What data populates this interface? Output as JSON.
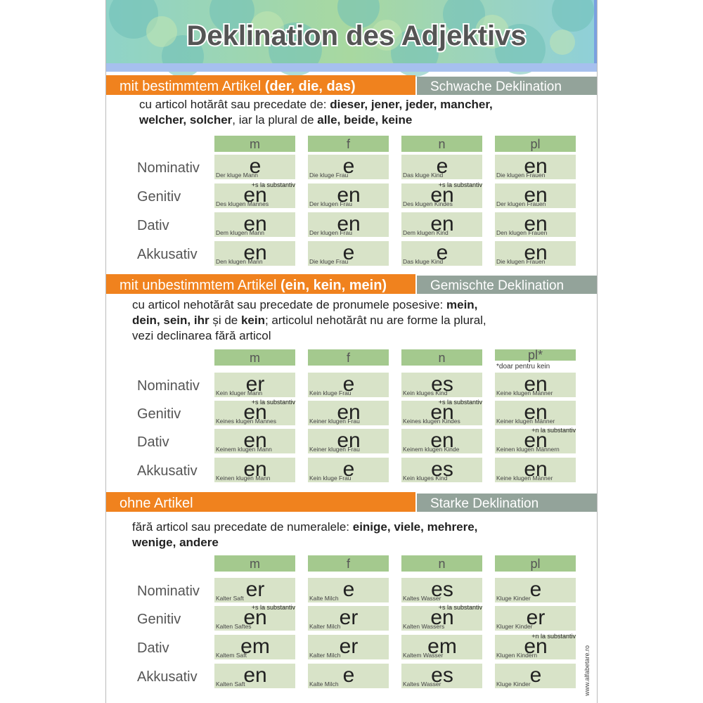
{
  "title": "Deklination des Adjektivs",
  "sections": [
    {
      "heading": [
        {
          "text": "mit bestimmtem Artikel ",
          "bold": false
        },
        {
          "text": "(der, die, das)",
          "bold": true
        }
      ],
      "type": "Schwache Deklination",
      "description": [
        [
          {
            "text": "cu articol hotărât sau precedate de: ",
            "bold": false
          },
          {
            "text": "dieser, jener, jeder, mancher,",
            "bold": true
          }
        ],
        [
          {
            "text": "welcher, solcher",
            "bold": true
          },
          {
            "text": ", iar la plural de ",
            "bold": false
          },
          {
            "text": "alle, beide, keine",
            "bold": true
          }
        ]
      ],
      "columns": [
        "m",
        "f",
        "n",
        "pl"
      ],
      "rows": [
        {
          "case": "Nominativ",
          "cells": [
            {
              "ending": "e",
              "example": "Der kluge Mann"
            },
            {
              "ending": "e",
              "example": "Die kluge Frau"
            },
            {
              "ending": "e",
              "example": "Das kluge Kind"
            },
            {
              "ending": "en",
              "example": "Die klugen Frauen"
            }
          ]
        },
        {
          "case": "Genitiv",
          "cells": [
            {
              "ending": "en",
              "example": "Des klugen Mannes",
              "note": "+s la substantiv"
            },
            {
              "ending": "en",
              "example": "Der klugen Frau"
            },
            {
              "ending": "en",
              "example": "Des klugen Kindes",
              "note": "+s la substantiv"
            },
            {
              "ending": "en",
              "example": "Der klugen Frauen"
            }
          ]
        },
        {
          "case": "Dativ",
          "cells": [
            {
              "ending": "en",
              "example": "Dem klugen Mann"
            },
            {
              "ending": "en",
              "example": "Der klugen Frau"
            },
            {
              "ending": "en",
              "example": "Dem klugen Kind"
            },
            {
              "ending": "en",
              "example": "Den klugen Frauen"
            }
          ]
        },
        {
          "case": "Akkusativ",
          "cells": [
            {
              "ending": "en",
              "example": "Den klugen Mann"
            },
            {
              "ending": "e",
              "example": "Die kluge Frau"
            },
            {
              "ending": "e",
              "example": "Das kluge Kind"
            },
            {
              "ending": "en",
              "example": "Die klugen Frauen"
            }
          ]
        }
      ]
    },
    {
      "heading": [
        {
          "text": "mit unbestimmtem Artikel ",
          "bold": false
        },
        {
          "text": "(ein, kein, mein)",
          "bold": true
        }
      ],
      "type": "Gemischte Deklination",
      "description": [
        [
          {
            "text": "cu articol nehotărât sau precedate de pronumele posesive: ",
            "bold": false
          },
          {
            "text": "mein,",
            "bold": true
          }
        ],
        [
          {
            "text": "dein, sein, ihr",
            "bold": true
          },
          {
            "text": " și de ",
            "bold": false
          },
          {
            "text": "kein",
            "bold": true
          },
          {
            "text": "; articolul nehotărât nu are forme la plural,",
            "bold": false
          }
        ],
        [
          {
            "text": "vezi declinarea fără articol",
            "bold": false
          }
        ]
      ],
      "columns": [
        "m",
        "f",
        "n",
        "pl*"
      ],
      "column_note": "*doar pentru kein",
      "rows": [
        {
          "case": "Nominativ",
          "cells": [
            {
              "ending": "er",
              "example": "Kein kluger Mann"
            },
            {
              "ending": "e",
              "example": "Kein kluge Frau"
            },
            {
              "ending": "es",
              "example": "Kein kluges Kind"
            },
            {
              "ending": "en",
              "example": "Keine klugen Männer"
            }
          ]
        },
        {
          "case": "Genitiv",
          "cells": [
            {
              "ending": "en",
              "example": "Keines klugen Mannes",
              "note": "+s la substantiv"
            },
            {
              "ending": "en",
              "example": "Keiner klugen Frau"
            },
            {
              "ending": "en",
              "example": "Keines klugen Kindes",
              "note": "+s la substantiv"
            },
            {
              "ending": "en",
              "example": "Keiner klugen Männer"
            }
          ]
        },
        {
          "case": "Dativ",
          "cells": [
            {
              "ending": "en",
              "example": "Keinem klugen Mann"
            },
            {
              "ending": "en",
              "example": "Keiner klugen Frau"
            },
            {
              "ending": "en",
              "example": "Keinem klugen Kinde"
            },
            {
              "ending": "en",
              "example": "Keinen klugen Männern",
              "note": "+n la substantiv"
            }
          ]
        },
        {
          "case": "Akkusativ",
          "cells": [
            {
              "ending": "en",
              "example": "Keinen klugen Mann"
            },
            {
              "ending": "e",
              "example": "Kein kluge Frau"
            },
            {
              "ending": "es",
              "example": "Kein kluges Kind"
            },
            {
              "ending": "en",
              "example": "Keine klugen Männer"
            }
          ]
        }
      ]
    },
    {
      "heading": [
        {
          "text": "ohne Artikel",
          "bold": false
        }
      ],
      "type": "Starke Deklination",
      "description": [
        [
          {
            "text": "fără articol sau precedate de numeralele: ",
            "bold": false
          },
          {
            "text": "einige, viele, mehrere,",
            "bold": true
          }
        ],
        [
          {
            "text": "wenige, andere",
            "bold": true
          }
        ]
      ],
      "columns": [
        "m",
        "f",
        "n",
        "pl"
      ],
      "rows": [
        {
          "case": "Nominativ",
          "cells": [
            {
              "ending": "er",
              "example": "Kalter Saft"
            },
            {
              "ending": "e",
              "example": "Kalte Milch"
            },
            {
              "ending": "es",
              "example": "Kaltes Wasser"
            },
            {
              "ending": "e",
              "example": "Kluge Kinder"
            }
          ]
        },
        {
          "case": "Genitiv",
          "cells": [
            {
              "ending": "en",
              "example": "Kalten Saftes",
              "note": "+s la substantiv"
            },
            {
              "ending": "er",
              "example": "Kalter Milch"
            },
            {
              "ending": "en",
              "example": "Kalten Wassers",
              "note": "+s la substantiv"
            },
            {
              "ending": "er",
              "example": "Kluger Kinder"
            }
          ]
        },
        {
          "case": "Dativ",
          "cells": [
            {
              "ending": "em",
              "example": "Kaltem Saft"
            },
            {
              "ending": "er",
              "example": "Kalter Milch"
            },
            {
              "ending": "em",
              "example": "Kaltem Wasser"
            },
            {
              "ending": "en",
              "example": "Klugen Kindern",
              "note": "+n la substantiv"
            }
          ]
        },
        {
          "case": "Akkusativ",
          "cells": [
            {
              "ending": "en",
              "example": "Kalten Saft"
            },
            {
              "ending": "e",
              "example": "Kalte Milch"
            },
            {
              "ending": "es",
              "example": "Kaltes Wasser"
            },
            {
              "ending": "e",
              "example": "Kluge Kinder"
            }
          ]
        }
      ]
    }
  ],
  "footer": "www.alfabetare.ro"
}
